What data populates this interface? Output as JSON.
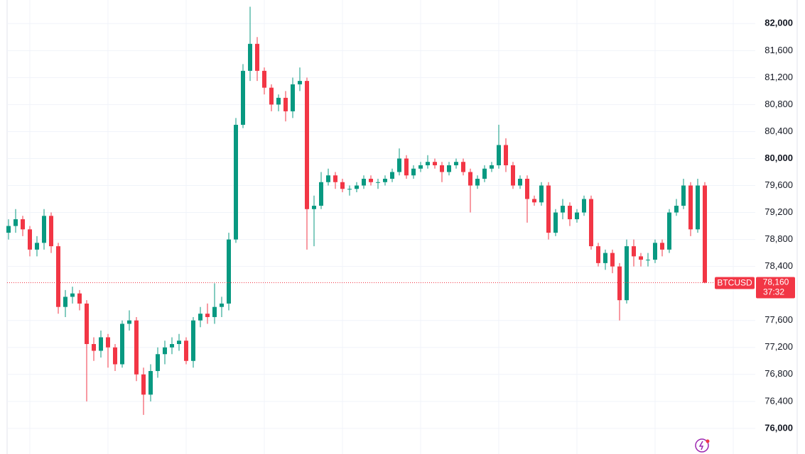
{
  "chart_data": {
    "type": "candlestick",
    "symbol": "BTCUSD",
    "last_label": "78,160",
    "countdown": "37:32",
    "up_color": "#089981",
    "down_color": "#f23645",
    "grid": true,
    "ylim": [
      75620,
      82350
    ],
    "yticks": [
      {
        "value": 76000,
        "label": "76,000"
      },
      {
        "value": 76400,
        "label": "76,400"
      },
      {
        "value": 76800,
        "label": "76,800"
      },
      {
        "value": 77200,
        "label": "77,200"
      },
      {
        "value": 77600,
        "label": "77,600"
      },
      {
        "value": 78400,
        "label": "78,400"
      },
      {
        "value": 78800,
        "label": "78,800"
      },
      {
        "value": 79200,
        "label": "79,200"
      },
      {
        "value": 79600,
        "label": "79,600"
      },
      {
        "value": 80000,
        "label": "80,000"
      },
      {
        "value": 80400,
        "label": "80,400"
      },
      {
        "value": 80800,
        "label": "80,800"
      },
      {
        "value": 81200,
        "label": "81,200"
      },
      {
        "value": 81600,
        "label": "81,600"
      },
      {
        "value": 82000,
        "label": "82,000"
      }
    ],
    "open": [
      78900,
      79000,
      79100,
      78950,
      78650,
      78750,
      79150,
      78700,
      77800,
      77950,
      78000,
      77850,
      77250,
      77150,
      77350,
      77200,
      76950,
      77550,
      77600,
      76800,
      76500,
      76850,
      77100,
      77200,
      77250,
      77300,
      77000,
      77600,
      77700,
      77650,
      77800,
      77850,
      78800,
      80500,
      81300,
      81700,
      81300,
      81050,
      80800,
      80900,
      80700,
      81100,
      81150,
      79250,
      79300,
      79650,
      79750,
      79650,
      79550,
      79550,
      79600,
      79700,
      79650,
      79650,
      79700,
      79800,
      80000,
      79750,
      79850,
      79900,
      79950,
      79900,
      79800,
      79900,
      79950,
      79800,
      79600,
      79700,
      79850,
      79900,
      80200,
      79900,
      79600,
      79700,
      79400,
      79350,
      79600,
      78900,
      79200,
      79300,
      79100,
      79200,
      79400,
      78700,
      78450,
      78600,
      78400,
      77900,
      78700,
      78550,
      78500,
      78500,
      78750,
      78650,
      79200,
      79300,
      79600,
      78950,
      79600
    ],
    "high": [
      79100,
      79250,
      79150,
      79000,
      78850,
      79250,
      79200,
      78750,
      78050,
      78100,
      78050,
      77900,
      77350,
      77450,
      77400,
      77250,
      77600,
      77750,
      77650,
      76900,
      76950,
      77200,
      77300,
      77350,
      77400,
      77350,
      77650,
      77800,
      77850,
      78150,
      77950,
      78900,
      80600,
      81400,
      82250,
      81800,
      81350,
      81100,
      80950,
      81000,
      81200,
      81350,
      81200,
      79450,
      79800,
      79850,
      79800,
      79700,
      79600,
      79650,
      79750,
      79750,
      79700,
      79750,
      79850,
      80150,
      80050,
      79900,
      79950,
      80050,
      80000,
      79950,
      79950,
      80000,
      80000,
      79850,
      79750,
      79900,
      79950,
      80500,
      80300,
      79950,
      79750,
      79750,
      79450,
      79650,
      79650,
      79250,
      79400,
      79350,
      79250,
      79450,
      79450,
      78750,
      78650,
      78650,
      78450,
      78800,
      78800,
      78600,
      78600,
      78800,
      78800,
      79250,
      79400,
      79700,
      79650,
      79700,
      79650
    ],
    "low": [
      78800,
      78900,
      78850,
      78550,
      78550,
      78650,
      78600,
      77700,
      77650,
      77850,
      77750,
      76400,
      77000,
      77050,
      76900,
      76850,
      76900,
      77450,
      76700,
      76200,
      76400,
      76750,
      76950,
      77100,
      77150,
      76950,
      76900,
      77500,
      77550,
      77550,
      77650,
      77750,
      78750,
      80450,
      81150,
      81150,
      80950,
      80700,
      80700,
      80550,
      80600,
      81000,
      78650,
      78700,
      79250,
      79600,
      79550,
      79500,
      79450,
      79500,
      79550,
      79600,
      79550,
      79600,
      79650,
      79750,
      79700,
      79700,
      79800,
      79850,
      79850,
      79650,
      79750,
      79850,
      79750,
      79200,
      79550,
      79650,
      79800,
      79850,
      79800,
      79550,
      79550,
      79050,
      79300,
      79300,
      78800,
      78850,
      79100,
      79000,
      79050,
      79150,
      78650,
      78400,
      78350,
      78300,
      77600,
      77850,
      78400,
      78400,
      78400,
      78450,
      78550,
      78600,
      79150,
      79250,
      78850,
      78900,
      78150
    ],
    "close": [
      79000,
      79100,
      78950,
      78650,
      78750,
      79150,
      78700,
      77800,
      77950,
      78000,
      77850,
      77250,
      77150,
      77350,
      77200,
      76950,
      77550,
      77600,
      76800,
      76500,
      76850,
      77100,
      77200,
      77250,
      77300,
      77000,
      77600,
      77700,
      77650,
      77800,
      77850,
      78800,
      80500,
      81300,
      81700,
      81300,
      81050,
      80800,
      80900,
      80700,
      81100,
      81150,
      79250,
      79300,
      79650,
      79750,
      79650,
      79550,
      79550,
      79600,
      79700,
      79650,
      79650,
      79700,
      79800,
      80000,
      79750,
      79850,
      79900,
      79950,
      79900,
      79800,
      79900,
      79950,
      79800,
      79600,
      79700,
      79850,
      79900,
      80200,
      79900,
      79600,
      79700,
      79400,
      79350,
      79600,
      78900,
      79200,
      79300,
      79100,
      79200,
      79400,
      78700,
      78450,
      78600,
      78400,
      77900,
      78700,
      78550,
      78500,
      78500,
      78750,
      78650,
      79200,
      79300,
      79600,
      78950,
      79600,
      78160
    ]
  }
}
